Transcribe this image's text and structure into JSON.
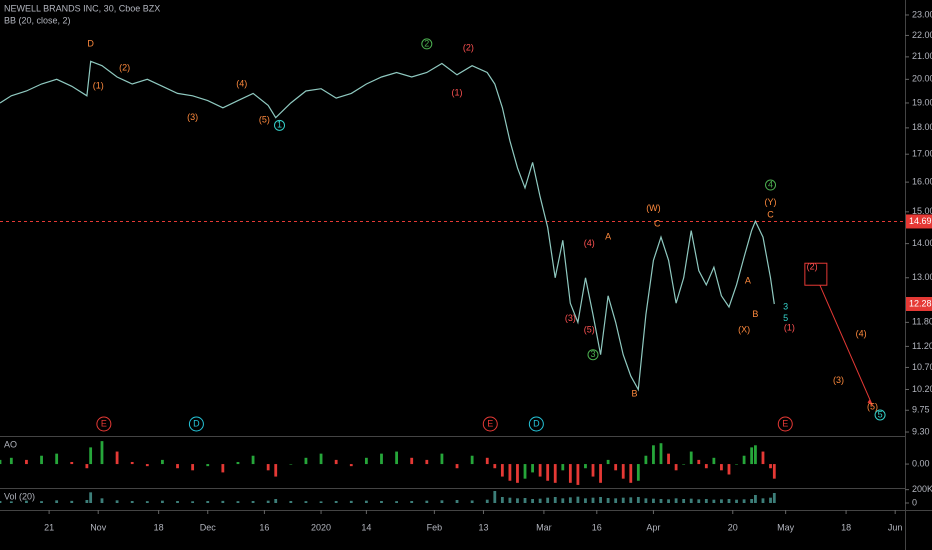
{
  "chart_data": [
    {
      "type": "line",
      "title": "NEWELL BRANDS INC, 30, Cboe BZX",
      "subtitle": "BB (20, close, 2)",
      "color": "#8fc9c0",
      "log": true,
      "xlim": [
        7,
        246.6
      ],
      "ylim": [
        9.22,
        23.76
      ],
      "x": [
        7,
        10,
        14,
        18,
        22,
        26,
        30,
        31,
        34,
        38,
        42,
        46,
        50,
        54,
        58,
        62,
        66,
        70,
        74,
        78,
        80,
        84,
        88,
        92,
        96,
        100,
        104,
        108,
        112,
        116,
        120,
        124,
        128,
        132,
        136,
        138,
        140,
        142,
        144,
        146,
        148,
        150,
        152,
        154,
        156,
        158,
        160,
        162,
        164,
        166,
        168,
        170,
        172,
        174,
        176,
        178,
        180,
        182,
        184,
        186,
        188,
        190,
        192,
        194,
        196,
        198,
        200,
        202,
        204,
        206,
        207,
        209,
        211,
        212
      ],
      "values": [
        19.0,
        19.3,
        19.5,
        19.8,
        20.0,
        19.7,
        19.3,
        20.8,
        20.6,
        20.1,
        19.8,
        20.0,
        19.7,
        19.4,
        19.3,
        19.1,
        18.8,
        19.1,
        19.4,
        18.9,
        18.4,
        19.0,
        19.5,
        19.6,
        19.2,
        19.4,
        19.8,
        20.1,
        20.3,
        20.1,
        20.3,
        20.7,
        20.2,
        20.6,
        20.3,
        19.8,
        18.8,
        17.5,
        16.5,
        15.8,
        16.7,
        15.5,
        14.5,
        13.0,
        14.1,
        12.3,
        11.8,
        13.0,
        12.0,
        11.0,
        12.5,
        11.8,
        11.0,
        10.5,
        10.2,
        12.0,
        13.5,
        14.2,
        13.5,
        12.3,
        13.0,
        14.4,
        13.2,
        12.8,
        13.3,
        12.5,
        12.2,
        12.8,
        13.6,
        14.4,
        14.7,
        14.2,
        13.0,
        12.28
      ],
      "yticks": [
        {
          "value": 23,
          "label": "23.00"
        },
        {
          "value": 22,
          "label": "22.00"
        },
        {
          "value": 21,
          "label": "21.00"
        },
        {
          "value": 20,
          "label": "20.00"
        },
        {
          "value": 19,
          "label": "19.00"
        },
        {
          "value": 18,
          "label": "18.00"
        },
        {
          "value": 17,
          "label": "17.00"
        },
        {
          "value": 16,
          "label": "16.00"
        },
        {
          "value": 15,
          "label": "15.00"
        },
        {
          "value": 14,
          "label": "14.00"
        },
        {
          "value": 13,
          "label": "13.00"
        },
        {
          "value": 11.8,
          "label": "11.80"
        },
        {
          "value": 11.2,
          "label": "11.20"
        },
        {
          "value": 10.7,
          "label": "10.70"
        },
        {
          "value": 10.2,
          "label": "10.20"
        },
        {
          "value": 9.75,
          "label": "9.75"
        },
        {
          "value": 9.3,
          "label": "9.30"
        }
      ],
      "xticks": [
        {
          "value": 20,
          "label": "21"
        },
        {
          "value": 33,
          "label": "Nov"
        },
        {
          "value": 49,
          "label": "18"
        },
        {
          "value": 62,
          "label": "Dec"
        },
        {
          "value": 77,
          "label": "16"
        },
        {
          "value": 92,
          "label": "2020"
        },
        {
          "value": 104,
          "label": "14"
        },
        {
          "value": 122,
          "label": "Feb"
        },
        {
          "value": 135,
          "label": "13"
        },
        {
          "value": 151,
          "label": "Mar"
        },
        {
          "value": 165,
          "label": "16"
        },
        {
          "value": 180,
          "label": "Apr"
        },
        {
          "value": 201,
          "label": "20"
        },
        {
          "value": 215,
          "label": "May"
        },
        {
          "value": 231,
          "label": "18"
        },
        {
          "value": 244,
          "label": "Jun"
        }
      ],
      "price_line": 14.69,
      "price_line_color": "#e53935",
      "projection": {
        "from": [
          223,
          13.1
        ],
        "to": [
          238,
          9.85
        ],
        "color": "#e53935"
      },
      "annotations": [
        {
          "text": "D",
          "x": 31,
          "y": 21.6,
          "color": "#ff8a3d"
        },
        {
          "text": "(1)",
          "x": 33,
          "y": 19.7,
          "color": "#ff8a3d"
        },
        {
          "text": "(2)",
          "x": 40,
          "y": 20.5,
          "color": "#ff8a3d"
        },
        {
          "text": "(3)",
          "x": 58,
          "y": 18.4,
          "color": "#ff8a3d"
        },
        {
          "text": "(4)",
          "x": 71,
          "y": 19.8,
          "color": "#ff8a3d"
        },
        {
          "text": "(5)",
          "x": 77,
          "y": 18.3,
          "color": "#ff8a3d"
        },
        {
          "text": "1",
          "x": 81,
          "y": 18.1,
          "color": "#35d0c9",
          "circled": true
        },
        {
          "text": "2",
          "x": 120,
          "y": 21.6,
          "color": "#4caf50",
          "circled": true
        },
        {
          "text": "(2)",
          "x": 131,
          "y": 21.4,
          "color": "#ff5252"
        },
        {
          "text": "(1)",
          "x": 128,
          "y": 19.4,
          "color": "#ff5252"
        },
        {
          "text": "(3)",
          "x": 158,
          "y": 11.9,
          "color": "#ff5252"
        },
        {
          "text": "(4)",
          "x": 163,
          "y": 14.0,
          "color": "#ff5252"
        },
        {
          "text": "(5)",
          "x": 163,
          "y": 11.6,
          "color": "#ff5252"
        },
        {
          "text": "3",
          "x": 164,
          "y": 11.0,
          "color": "#4caf50",
          "circled": true
        },
        {
          "text": "A",
          "x": 168,
          "y": 14.2,
          "color": "#ff8a3d"
        },
        {
          "text": "B",
          "x": 175,
          "y": 10.1,
          "color": "#ff8a3d"
        },
        {
          "text": "(W)",
          "x": 180,
          "y": 15.1,
          "color": "#ff8a3d"
        },
        {
          "text": "C",
          "x": 181,
          "y": 14.6,
          "color": "#ff8a3d"
        },
        {
          "text": "A",
          "x": 205,
          "y": 12.9,
          "color": "#ff8a3d"
        },
        {
          "text": "B",
          "x": 207,
          "y": 12.0,
          "color": "#ff8a3d"
        },
        {
          "text": "(X)",
          "x": 204,
          "y": 11.6,
          "color": "#ff8a3d"
        },
        {
          "text": "4",
          "x": 211,
          "y": 15.9,
          "color": "#4caf50",
          "circled": true
        },
        {
          "text": "(Y)",
          "x": 211,
          "y": 15.3,
          "color": "#ff8a3d"
        },
        {
          "text": "C",
          "x": 211,
          "y": 14.9,
          "color": "#ff8a3d"
        },
        {
          "text": "3",
          "x": 215,
          "y": 12.2,
          "color": "#35d0c9"
        },
        {
          "text": "5",
          "x": 215,
          "y": 11.9,
          "color": "#35d0c9"
        },
        {
          "text": "(1)",
          "x": 216,
          "y": 11.65,
          "color": "#ff5252"
        },
        {
          "text": "(2)",
          "x": 222,
          "y": 13.3,
          "color": "#ff5252"
        },
        {
          "text": "(4)",
          "x": 235,
          "y": 11.5,
          "color": "#ff8a3d"
        },
        {
          "text": "(3)",
          "x": 229,
          "y": 10.4,
          "color": "#ff8a3d"
        },
        {
          "text": "(5)",
          "x": 238,
          "y": 9.82,
          "color": "#ff8a3d"
        },
        {
          "text": "5",
          "x": 240,
          "y": 9.65,
          "color": "#35d0c9",
          "circled": true
        }
      ],
      "events": [
        {
          "text": "E",
          "x": 34.5,
          "color": "#e53935"
        },
        {
          "text": "D",
          "x": 59,
          "color": "#26c6da"
        },
        {
          "text": "E",
          "x": 136.8,
          "color": "#e53935"
        },
        {
          "text": "D",
          "x": 149,
          "color": "#26c6da"
        },
        {
          "text": "E",
          "x": 214.9,
          "color": "#e53935"
        }
      ]
    },
    {
      "type": "bar",
      "title": "AO",
      "up_color": "#26a63a",
      "down_color": "#e53935",
      "xlim": [
        7,
        246.6
      ],
      "ylim": [
        -1.1,
        1.25
      ],
      "x": [
        7,
        10,
        14,
        18,
        22,
        26,
        30,
        31,
        34,
        38,
        42,
        46,
        50,
        54,
        58,
        62,
        66,
        70,
        74,
        78,
        80,
        84,
        88,
        92,
        96,
        100,
        104,
        108,
        112,
        116,
        120,
        124,
        128,
        132,
        136,
        138,
        140,
        142,
        144,
        146,
        148,
        150,
        152,
        154,
        156,
        158,
        160,
        162,
        164,
        166,
        168,
        170,
        172,
        174,
        176,
        178,
        180,
        182,
        184,
        186,
        188,
        190,
        192,
        194,
        196,
        198,
        200,
        202,
        204,
        206,
        207,
        209,
        211,
        212
      ],
      "values": [
        0.2,
        0.3,
        0.2,
        0.4,
        0.5,
        0.1,
        -0.2,
        0.8,
        1.1,
        0.6,
        0.1,
        -0.1,
        0.2,
        -0.2,
        -0.3,
        -0.1,
        -0.4,
        0.1,
        0.4,
        -0.3,
        -0.6,
        0.0,
        0.3,
        0.5,
        0.2,
        -0.1,
        0.3,
        0.5,
        0.6,
        0.3,
        0.2,
        0.5,
        -0.2,
        0.4,
        0.3,
        -0.2,
        -0.6,
        -0.8,
        -0.9,
        -0.7,
        -0.4,
        -0.6,
        -0.8,
        -0.9,
        -0.3,
        -0.9,
        -1.0,
        -0.2,
        -0.6,
        -0.9,
        0.2,
        -0.3,
        -0.7,
        -0.9,
        -0.8,
        0.4,
        0.9,
        1.0,
        0.5,
        -0.3,
        0.0,
        0.6,
        0.2,
        -0.2,
        0.3,
        -0.3,
        -0.5,
        0.0,
        0.4,
        0.8,
        0.9,
        0.6,
        -0.2,
        -0.7
      ],
      "yticks": [
        {
          "value": 0,
          "label": "0.00"
        }
      ]
    },
    {
      "type": "bar",
      "title": "Vol (20)",
      "color": "#3d7f7a",
      "xlim": [
        7,
        246.6
      ],
      "ylim": [
        -90000,
        210000
      ],
      "x": [
        7,
        10,
        14,
        18,
        22,
        26,
        30,
        31,
        34,
        38,
        42,
        46,
        50,
        54,
        58,
        62,
        66,
        70,
        74,
        78,
        80,
        84,
        88,
        92,
        96,
        100,
        104,
        108,
        112,
        116,
        120,
        124,
        128,
        132,
        136,
        138,
        140,
        142,
        144,
        146,
        148,
        150,
        152,
        154,
        156,
        158,
        160,
        162,
        164,
        166,
        168,
        170,
        172,
        174,
        176,
        178,
        180,
        182,
        184,
        186,
        188,
        190,
        192,
        194,
        196,
        198,
        200,
        202,
        204,
        206,
        207,
        209,
        211,
        212
      ],
      "values": [
        30000,
        25000,
        35000,
        28000,
        40000,
        32000,
        45000,
        160000,
        70000,
        40000,
        30000,
        28000,
        35000,
        30000,
        26000,
        30000,
        32000,
        28000,
        30000,
        35000,
        60000,
        30000,
        28000,
        25000,
        30000,
        32000,
        35000,
        30000,
        28000,
        30000,
        35000,
        40000,
        45000,
        38000,
        50000,
        180000,
        90000,
        80000,
        70000,
        75000,
        60000,
        65000,
        80000,
        90000,
        70000,
        85000,
        95000,
        70000,
        80000,
        90000,
        75000,
        70000,
        80000,
        85000,
        90000,
        70000,
        65000,
        60000,
        55000,
        70000,
        60000,
        65000,
        55000,
        60000,
        50000,
        55000,
        60000,
        50000,
        55000,
        60000,
        120000,
        70000,
        80000,
        150000
      ],
      "yticks": [
        {
          "value": 200000,
          "label": "200K"
        },
        0
      ]
    }
  ]
}
